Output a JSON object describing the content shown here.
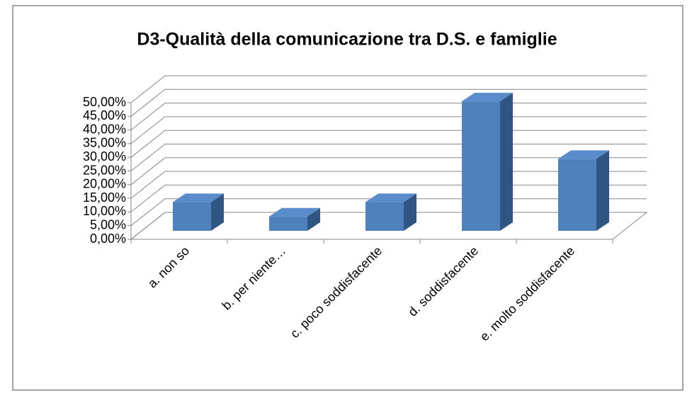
{
  "chart_data": {
    "type": "bar3d",
    "title": "D3-Qualità della comunicazione tra D.S. e famiglie",
    "categories": [
      "a. non so",
      "b.  per niente…",
      "c. poco soddisfacente",
      "d.  soddisfacente",
      "e. molto soddisfacente"
    ],
    "values": [
      10.53,
      5.26,
      10.53,
      47.37,
      26.32
    ],
    "color": "#4f81bd",
    "ylim": [
      0,
      50
    ],
    "yticks": [
      {
        "value": 0,
        "label": "0,00%"
      },
      {
        "value": 5,
        "label": "5,00%"
      },
      {
        "value": 10,
        "label": "10,00%"
      },
      {
        "value": 15,
        "label": "15,00%"
      },
      {
        "value": 20,
        "label": "20,00%"
      },
      {
        "value": 25,
        "label": "25,00%"
      },
      {
        "value": 30,
        "label": "30,00%"
      },
      {
        "value": 35,
        "label": "35,00%"
      },
      {
        "value": 40,
        "label": "40,00%"
      },
      {
        "value": 45,
        "label": "45,00%"
      },
      {
        "value": 50,
        "label": "50,00%"
      }
    ],
    "grid": true
  }
}
